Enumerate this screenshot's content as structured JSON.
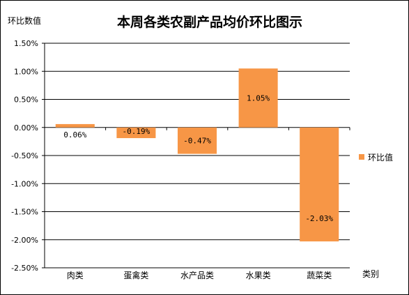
{
  "chart_data": {
    "type": "bar",
    "title": "本周各类农副产品均价环比图示",
    "ylabel": "环比数值",
    "xlabel": "类别",
    "categories": [
      "肉类",
      "蛋禽类",
      "水产品类",
      "水果类",
      "蔬菜类"
    ],
    "series": [
      {
        "name": "环比值",
        "values": [
          0.06,
          -0.19,
          -0.47,
          1.05,
          -2.03
        ]
      }
    ],
    "data_labels": [
      "0.06%",
      "-0.19%",
      "-0.47%",
      "1.05%",
      "-2.03%"
    ],
    "ylim": [
      -2.5,
      1.5
    ],
    "yticks": [
      "1.50%",
      "1.00%",
      "0.50%",
      "0.00%",
      "-0.50%",
      "-1.00%",
      "-1.50%",
      "-2.00%",
      "-2.50%"
    ],
    "grid": true,
    "legend_position": "right",
    "bar_color": "#F79646"
  }
}
